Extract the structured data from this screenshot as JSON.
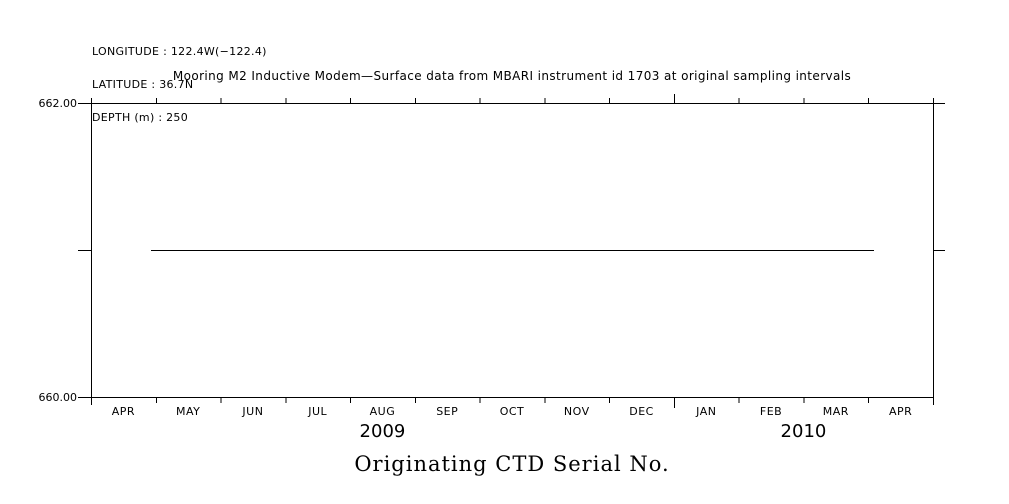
{
  "page": {
    "background": "#ffffff",
    "foreground": "#000000"
  },
  "header": {
    "longitude": "LONGITUDE : 122.4W(−122.4)",
    "latitude": "LATITUDE : 36.7N",
    "depth": "DEPTH (m) : 250"
  },
  "caption": "Originating CTD Serial No.",
  "chart_data": {
    "type": "line",
    "title": "Mooring M2 Inductive Modem—Surface data from MBARI instrument id 1703 at original sampling intervals",
    "xlabel": "Originating CTD Serial No.",
    "ylabel": "",
    "ylim": [
      660.0,
      662.0
    ],
    "y_tick_labels": [
      {
        "value": 662.0,
        "label": "662.00"
      },
      {
        "value": 660.0,
        "label": "660.00"
      }
    ],
    "y_ticks_left": [
      660.0,
      661.0,
      662.0
    ],
    "y_ticks_right": [
      661.0,
      662.0
    ],
    "x_months": [
      "APR",
      "MAY",
      "JUN",
      "JUL",
      "AUG",
      "SEP",
      "OCT",
      "NOV",
      "DEC",
      "JAN",
      "FEB",
      "MAR",
      "APR"
    ],
    "x_years": [
      {
        "label": "2009",
        "start_month_index": 0,
        "end_month_index": 9
      },
      {
        "label": "2010",
        "start_month_index": 9,
        "end_month_index": 13
      }
    ],
    "grid": false,
    "legend": false,
    "background": "#ffffff",
    "series": [
      {
        "name": "Originating CTD Serial No. (instrument id 1703)",
        "value": 661.0,
        "x_start_frac": 0.071,
        "x_end_frac": 0.93,
        "points": [
          {
            "date": "2009-04-28",
            "y": 661.0
          },
          {
            "date": "2010-04-03",
            "y": 661.0
          }
        ],
        "color": "#000000"
      }
    ]
  }
}
